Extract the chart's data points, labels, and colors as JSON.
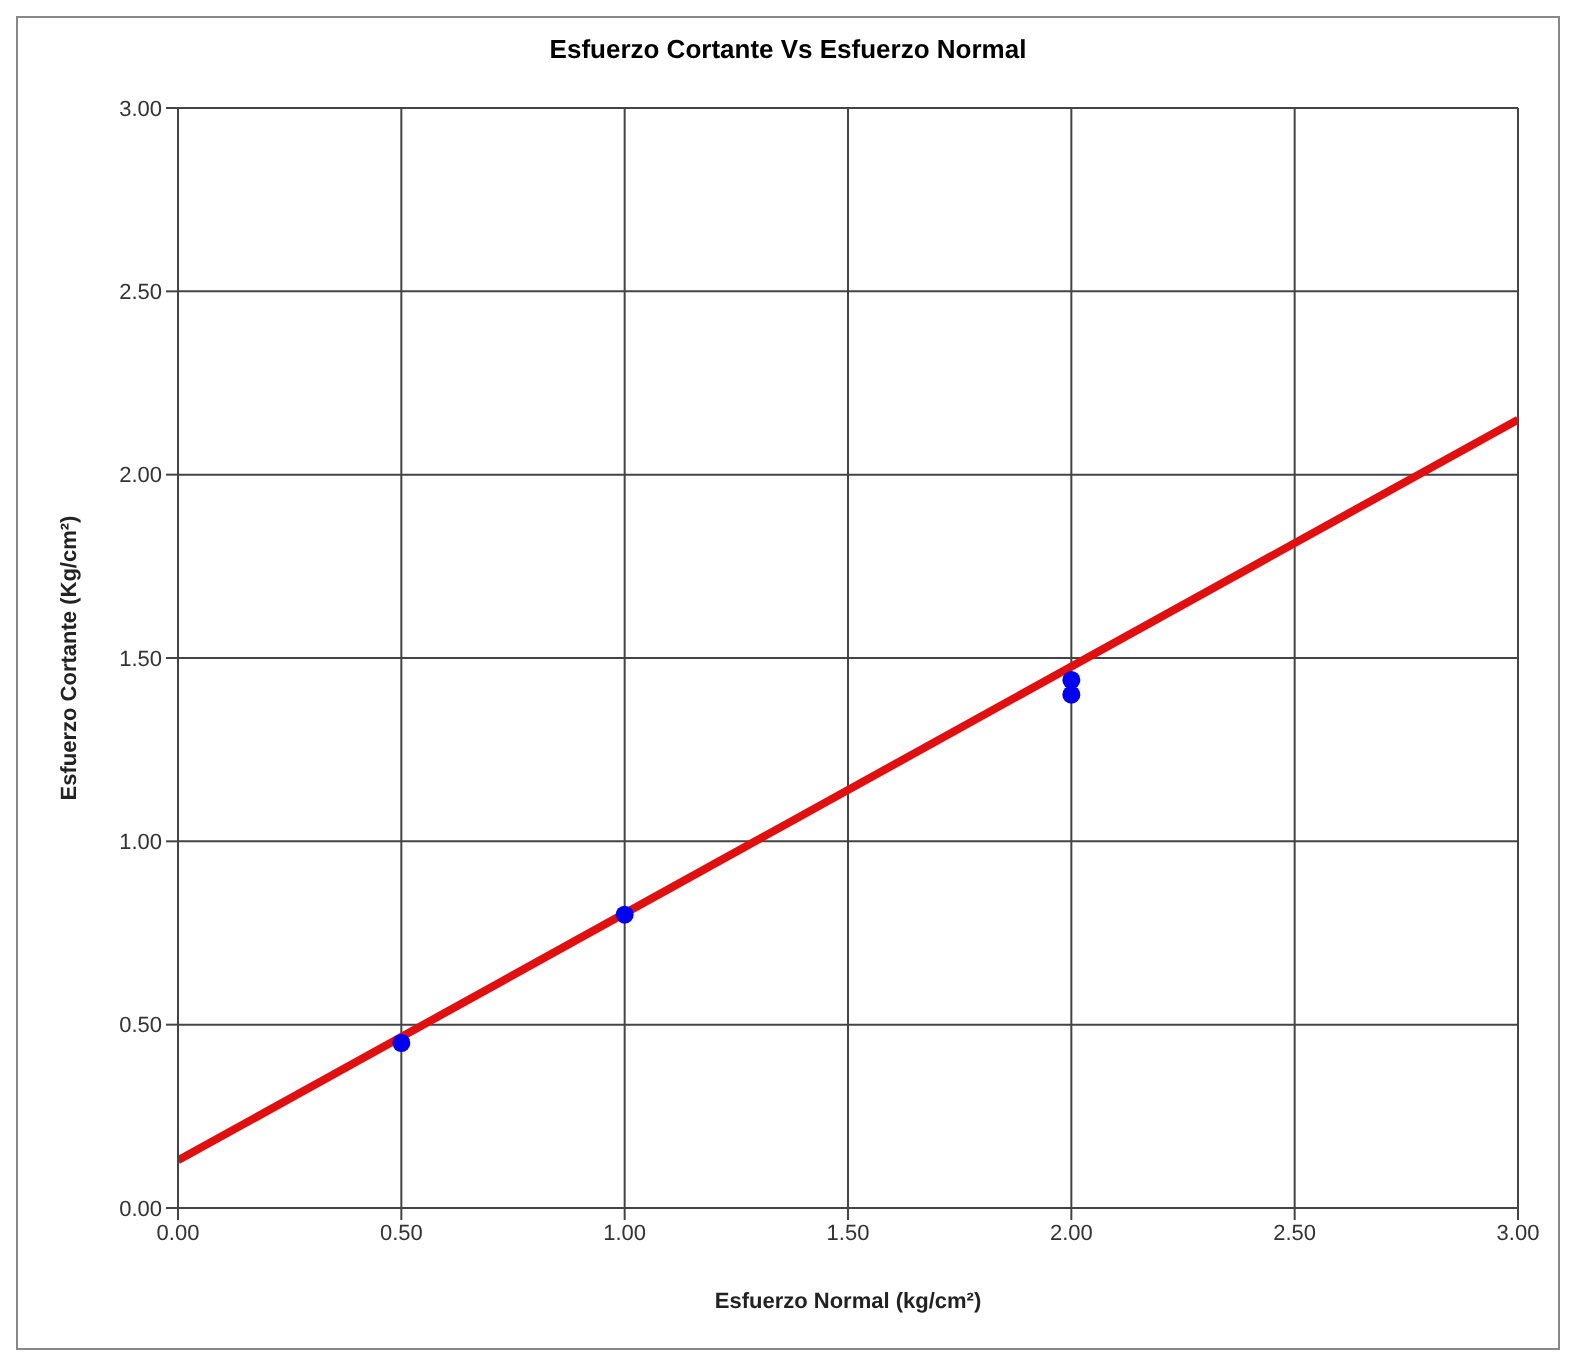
{
  "chart_data": {
    "type": "scatter",
    "title": "Esfuerzo Cortante Vs Esfuerzo Normal",
    "xlabel": "Esfuerzo Normal (kg/cm²)",
    "ylabel": "Esfuerzo Cortante (Kg/cm²)",
    "series": [
      {
        "type": "line",
        "color": "#e01010",
        "x": [
          0,
          3
        ],
        "values": [
          0.13,
          2.15
        ],
        "marker": "none",
        "line_style": "solid"
      },
      {
        "color": "#0000ee",
        "x": [
          0.5,
          1.0,
          2.0,
          2.0
        ],
        "values": [
          0.45,
          0.8,
          1.4,
          1.44
        ],
        "marker": "circle"
      }
    ],
    "xlim": [
      0,
      3
    ],
    "ylim": [
      0,
      3
    ],
    "xticks": [
      {
        "value": 0,
        "label": "0.00"
      },
      {
        "value": 0.5,
        "label": "0.50"
      },
      {
        "value": 1,
        "label": "1.00"
      },
      {
        "value": 1.5,
        "label": "1.50"
      },
      {
        "value": 2,
        "label": "2.00"
      },
      {
        "value": 2.5,
        "label": "2.50"
      },
      {
        "value": 3,
        "label": "3.00"
      }
    ],
    "yticks": [
      {
        "value": 0,
        "label": "0.00"
      },
      {
        "value": 0.5,
        "label": "0.50"
      },
      {
        "value": 1,
        "label": "1.00"
      },
      {
        "value": 1.5,
        "label": "1.50"
      },
      {
        "value": 2,
        "label": "2.00"
      },
      {
        "value": 2.5,
        "label": "2.50"
      },
      {
        "value": 3,
        "label": "3.00"
      }
    ],
    "grid": true
  }
}
